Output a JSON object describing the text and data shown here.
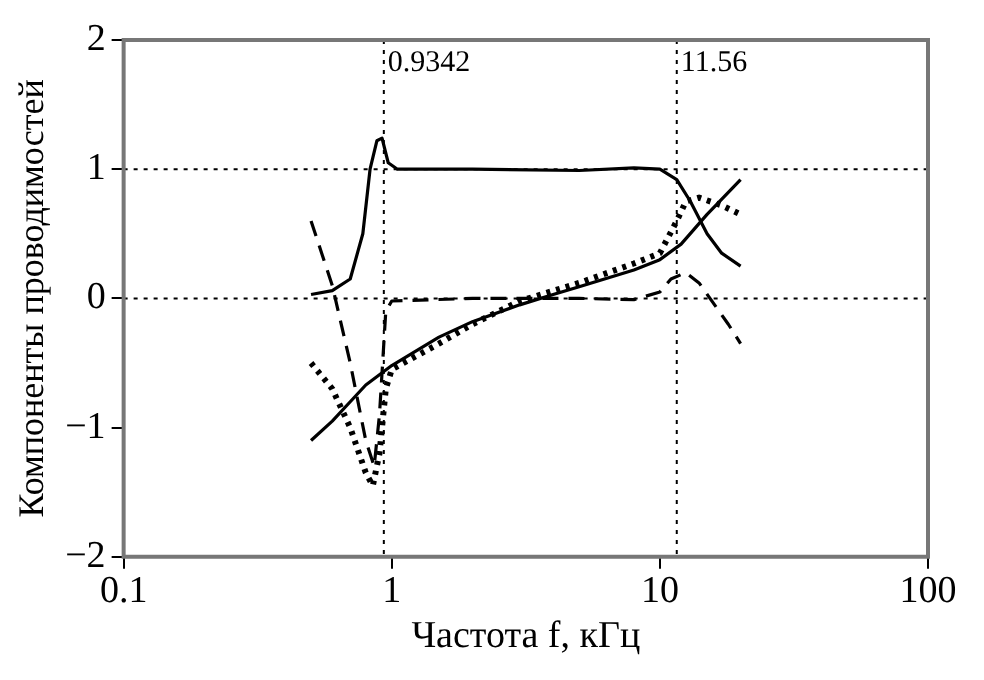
{
  "chart_data": {
    "type": "line",
    "xlabel": "Частота f, кГц",
    "ylabel": "Компоненты проводимостей",
    "log": "x",
    "xlim": [
      0.1,
      100
    ],
    "xticks": [
      0.1,
      1,
      10,
      100
    ],
    "ylim": [
      -2,
      2
    ],
    "yticks": [
      -2,
      -1,
      0,
      1,
      2
    ],
    "grid": false,
    "legend": false,
    "marker": "none",
    "series": [
      {
        "color": "#000000",
        "line_style": "solid",
        "x": [
          0.5,
          0.6,
          0.7,
          0.78,
          0.83,
          0.88,
          0.92,
          0.97,
          1.05,
          2,
          5,
          8,
          10,
          11.56,
          13,
          15,
          17,
          20
        ],
        "values": [
          0.03,
          0.06,
          0.15,
          0.5,
          1.0,
          1.22,
          1.24,
          1.05,
          1.0,
          1.0,
          0.99,
          1.01,
          1.0,
          0.92,
          0.75,
          0.5,
          0.35,
          0.25
        ]
      },
      {
        "color": "#000000",
        "line_style": "dashed",
        "x": [
          0.5,
          0.6,
          0.7,
          0.8,
          0.86,
          0.9,
          0.95,
          1.0,
          2,
          5,
          8,
          10,
          11,
          12.5,
          14,
          16,
          18,
          20
        ],
        "values": [
          0.6,
          0.1,
          -0.5,
          -1.1,
          -1.3,
          -0.9,
          -0.1,
          -0.02,
          0,
          0,
          -0.01,
          0.05,
          0.15,
          0.2,
          0.12,
          -0.05,
          -0.2,
          -0.35
        ]
      },
      {
        "color": "#000000",
        "line_style": "dotted",
        "x": [
          0.5,
          0.6,
          0.7,
          0.8,
          0.85,
          0.9,
          0.95,
          1.0,
          1.5,
          2,
          3,
          5,
          8,
          10,
          11.56,
          12.5,
          14,
          17,
          20
        ],
        "values": [
          -0.5,
          -0.7,
          -1.0,
          -1.35,
          -1.45,
          -1.2,
          -0.7,
          -0.55,
          -0.35,
          -0.2,
          -0.02,
          0.12,
          0.27,
          0.35,
          0.6,
          0.75,
          0.78,
          0.72,
          0.65
        ]
      },
      {
        "color": "#000000",
        "line_style": "solid",
        "x": [
          0.5,
          0.6,
          0.7,
          0.8,
          1.0,
          1.5,
          2,
          3,
          4,
          5,
          8,
          10,
          12,
          15,
          20
        ],
        "values": [
          -1.1,
          -0.95,
          -0.8,
          -0.67,
          -0.52,
          -0.3,
          -0.18,
          -0.05,
          0.03,
          0.09,
          0.22,
          0.3,
          0.42,
          0.65,
          0.92
        ]
      }
    ],
    "ref_lines": [
      {
        "axis": "x",
        "value": 0.9342,
        "label": "0.9342",
        "line_style": "dotted"
      },
      {
        "axis": "x",
        "value": 11.56,
        "label": "11.56",
        "line_style": "dotted"
      },
      {
        "axis": "y",
        "value": 1,
        "line_style": "dotted"
      },
      {
        "axis": "y",
        "value": 0,
        "line_style": "dotted"
      }
    ]
  }
}
